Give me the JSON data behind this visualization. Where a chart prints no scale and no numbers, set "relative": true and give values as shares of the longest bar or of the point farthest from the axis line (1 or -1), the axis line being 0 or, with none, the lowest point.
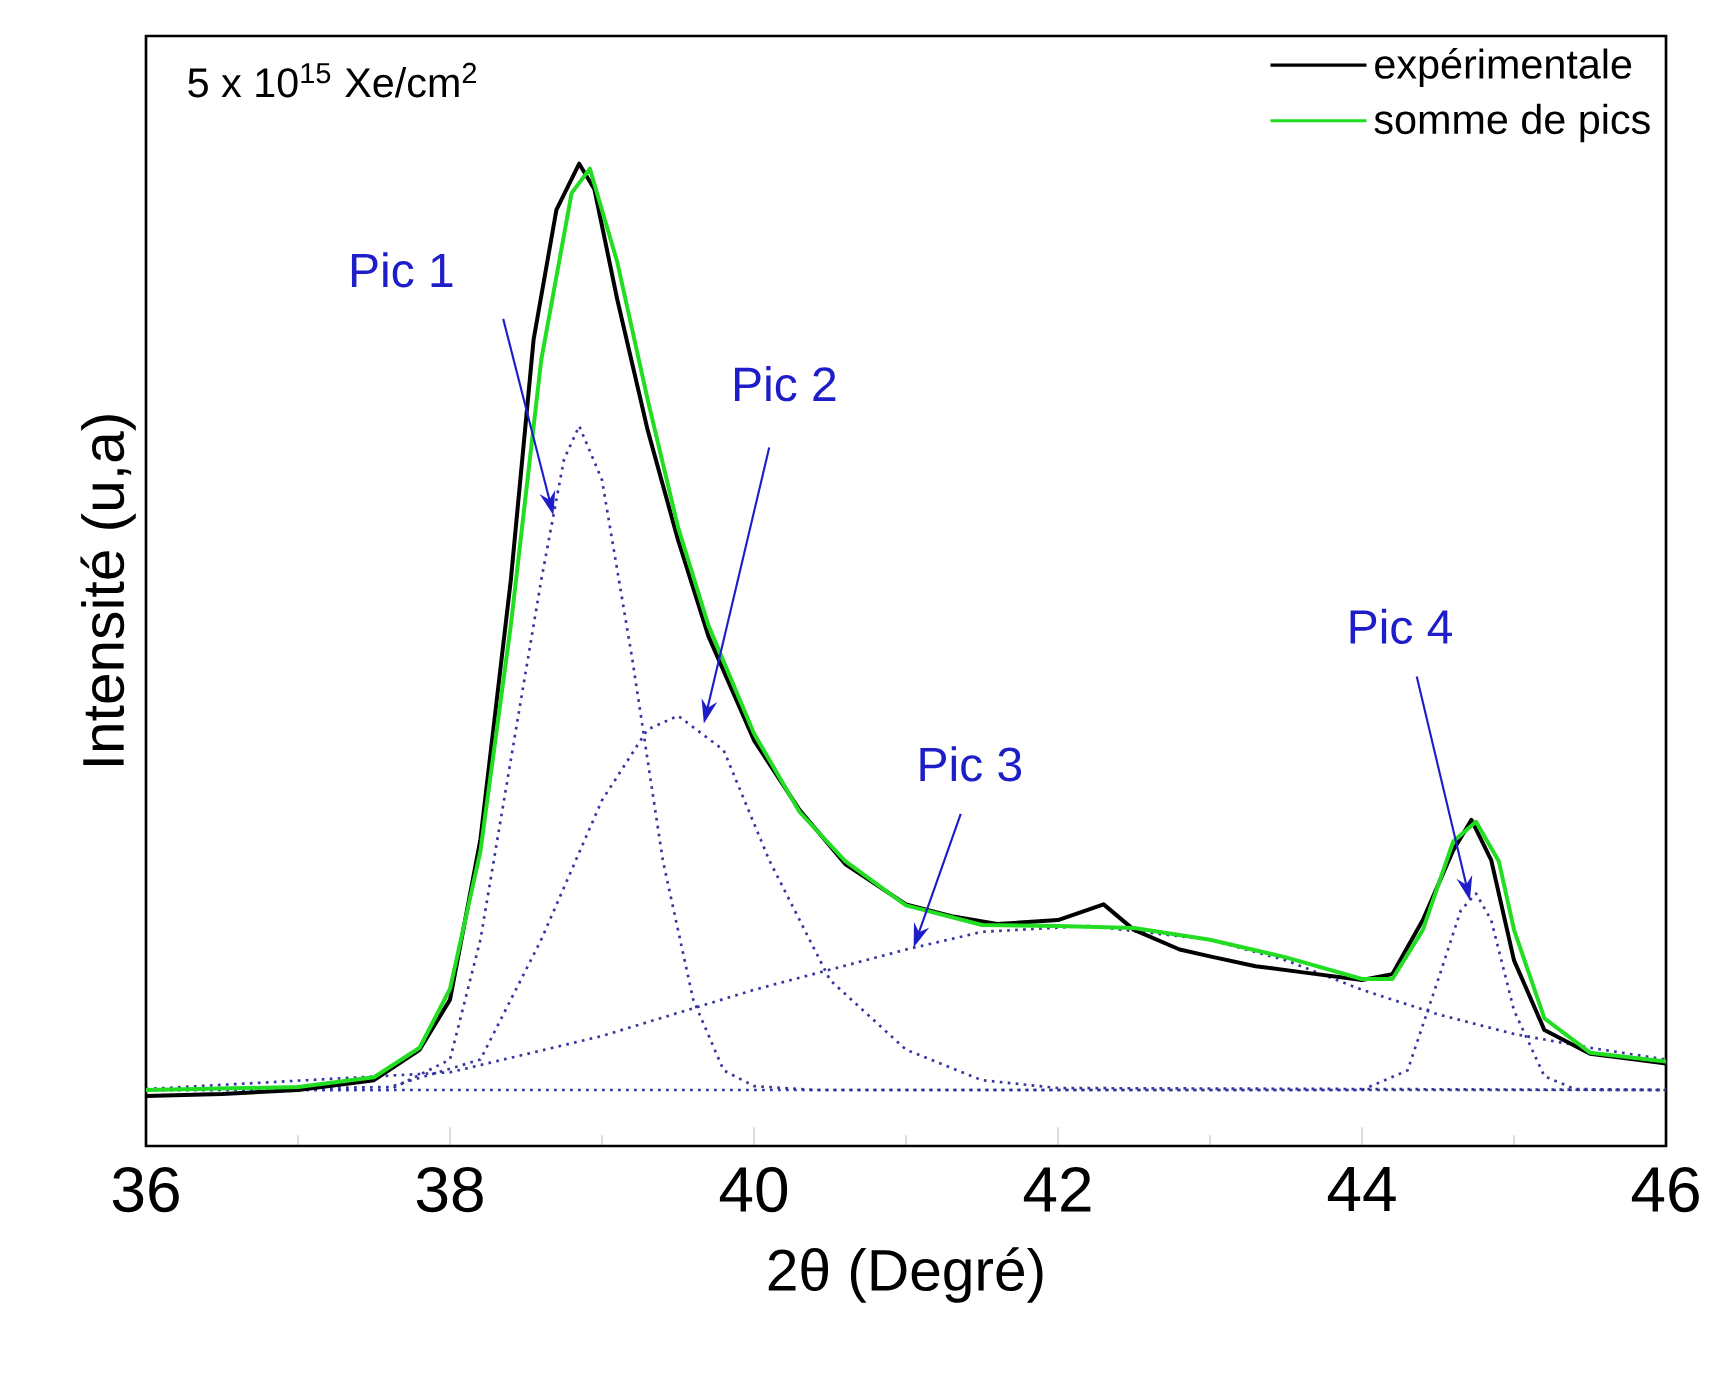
{
  "chart_data": {
    "type": "line",
    "relative": true,
    "xlabel": "2θ (Degré)",
    "ylabel": "Intensité (u,a)",
    "xlim": [
      36,
      46
    ],
    "xticks": [
      36,
      38,
      40,
      42,
      44,
      46
    ],
    "tick_labels": "x",
    "legend": "top right",
    "grid": false,
    "marker": "none",
    "annotations": [
      "5 x 10$^{15}$ Xe/cm$^{2}$",
      {
        "text": "Pic 1",
        "x": 38.68,
        "y": 0.642
      },
      {
        "text": "Pic 2",
        "x": 39.67,
        "y": 0.43
      },
      {
        "text": "Pic 3",
        "x": 41.05,
        "y": 0.202
      },
      {
        "text": "Pic 4",
        "x": 44.71,
        "y": 0.25
      }
    ],
    "series": [
      {
        "line_style": "dotted",
        "color": "#3535a0",
        "x": [
          36,
          37.6,
          38.0,
          38.2,
          38.4,
          38.6,
          38.75,
          38.85,
          39.0,
          39.2,
          39.4,
          39.6,
          39.8,
          40.0,
          40.4,
          46
        ],
        "values": [
          0.057,
          0.057,
          0.088,
          0.21,
          0.393,
          0.576,
          0.699,
          0.733,
          0.678,
          0.495,
          0.291,
          0.149,
          0.077,
          0.061,
          0.057,
          0.057
        ]
      },
      {
        "line_style": "dotted",
        "color": "#3535a0",
        "x": [
          36,
          37.6,
          38.2,
          38.6,
          39.0,
          39.3,
          39.5,
          39.8,
          40.1,
          40.5,
          41.0,
          41.5,
          42.0,
          46
        ],
        "values": [
          0.057,
          0.06,
          0.088,
          0.21,
          0.352,
          0.424,
          0.438,
          0.403,
          0.291,
          0.169,
          0.098,
          0.067,
          0.059,
          0.057
        ]
      },
      {
        "line_style": "dotted",
        "color": "#3535a0",
        "x": [
          36,
          38,
          39,
          40,
          41,
          41.5,
          42.2,
          43,
          43.5,
          44,
          44.5,
          45,
          45.5,
          46
        ],
        "values": [
          0.058,
          0.075,
          0.112,
          0.159,
          0.2,
          0.218,
          0.224,
          0.21,
          0.189,
          0.159,
          0.134,
          0.114,
          0.1,
          0.088
        ]
      },
      {
        "line_style": "dotted",
        "color": "#3535a0",
        "x": [
          36,
          44,
          44.3,
          44.5,
          44.65,
          44.75,
          44.85,
          45.0,
          45.2,
          45.4,
          46
        ],
        "values": [
          0.057,
          0.057,
          0.077,
          0.169,
          0.24,
          0.257,
          0.23,
          0.138,
          0.071,
          0.058,
          0.057
        ]
      },
      {
        "line_style": "solid",
        "name": "expérimentale",
        "color": "#000000",
        "x": [
          36,
          36.5,
          37,
          37.5,
          37.8,
          38.0,
          38.2,
          38.4,
          38.55,
          38.7,
          38.85,
          38.95,
          39.1,
          39.3,
          39.5,
          39.7,
          40.0,
          40.3,
          40.6,
          41.0,
          41.3,
          41.6,
          42.0,
          42.3,
          42.5,
          42.8,
          43.0,
          43.3,
          43.6,
          44.0,
          44.2,
          44.4,
          44.6,
          44.72,
          44.85,
          45.0,
          45.2,
          45.5,
          45.8,
          46
        ],
        "values": [
          0.051,
          0.053,
          0.057,
          0.067,
          0.098,
          0.149,
          0.312,
          0.576,
          0.821,
          0.953,
          1.0,
          0.974,
          0.862,
          0.729,
          0.617,
          0.519,
          0.413,
          0.342,
          0.287,
          0.246,
          0.234,
          0.226,
          0.23,
          0.246,
          0.22,
          0.2,
          0.193,
          0.183,
          0.177,
          0.169,
          0.175,
          0.23,
          0.301,
          0.332,
          0.291,
          0.189,
          0.118,
          0.094,
          0.088,
          0.084
        ]
      },
      {
        "line_style": "solid",
        "name": "somme de pics",
        "color": "#22dd22",
        "x": [
          36,
          37,
          37.5,
          37.8,
          38.0,
          38.2,
          38.4,
          38.6,
          38.8,
          38.92,
          39.1,
          39.3,
          39.5,
          39.7,
          40.0,
          40.3,
          40.6,
          41.0,
          41.5,
          42.0,
          42.5,
          43,
          43.5,
          44.0,
          44.2,
          44.4,
          44.6,
          44.75,
          44.9,
          45.0,
          45.2,
          45.5,
          46
        ],
        "values": [
          0.057,
          0.06,
          0.07,
          0.1,
          0.16,
          0.3,
          0.53,
          0.8,
          0.97,
          0.995,
          0.9,
          0.76,
          0.63,
          0.53,
          0.42,
          0.34,
          0.29,
          0.245,
          0.225,
          0.224,
          0.222,
          0.21,
          0.192,
          0.17,
          0.17,
          0.22,
          0.31,
          0.33,
          0.29,
          0.22,
          0.13,
          0.095,
          0.086
        ]
      }
    ]
  }
}
